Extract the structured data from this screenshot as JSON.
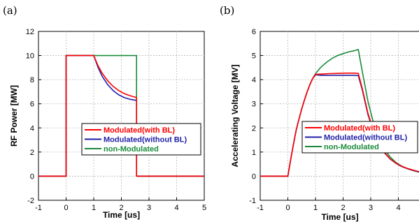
{
  "chart_data": [
    {
      "panel_label": "(a)",
      "type": "line",
      "xlabel": "Time [us]",
      "ylabel": "RF Power [MW]",
      "xlim": [
        -1,
        5
      ],
      "ylim": [
        -2,
        12
      ],
      "xticks": [
        -1,
        0,
        1,
        2,
        3,
        4,
        5
      ],
      "yticks": [
        -2,
        0,
        2,
        4,
        6,
        8,
        10,
        12
      ],
      "grid": true,
      "legend_position": "center-right",
      "series": [
        {
          "name": "Modulated(with BL)",
          "color": "#ff0000",
          "x": [
            -1,
            0,
            0,
            1,
            1.15,
            1.3,
            1.5,
            1.7,
            1.9,
            2.1,
            2.3,
            2.5,
            2.55,
            2.55,
            5
          ],
          "y": [
            0,
            0,
            10,
            10,
            9.18,
            8.55,
            7.92,
            7.45,
            7.1,
            6.85,
            6.68,
            6.55,
            6.52,
            0,
            0
          ]
        },
        {
          "name": "Modulated(without BL)",
          "color": "#1f1fa8",
          "x": [
            -1,
            0,
            0,
            1,
            1.15,
            1.3,
            1.5,
            1.7,
            1.9,
            2.1,
            2.3,
            2.5,
            2.55,
            2.55,
            5
          ],
          "y": [
            0,
            0,
            10,
            10,
            9.05,
            8.3,
            7.6,
            7.1,
            6.75,
            6.52,
            6.38,
            6.3,
            6.28,
            0,
            0
          ]
        },
        {
          "name": "non-Modulated",
          "color": "#1a8a3a",
          "x": [
            -1,
            0,
            0,
            2.55,
            2.55,
            5
          ],
          "y": [
            0,
            0,
            10,
            10,
            0,
            0
          ]
        }
      ]
    },
    {
      "panel_label": "(b)",
      "type": "line",
      "xlabel": "Time [us]",
      "ylabel": "Accelerating Voltage [MV]",
      "xlim": [
        -1,
        5
      ],
      "ylim": [
        -1,
        6
      ],
      "xticks": [
        -1,
        0,
        1,
        2,
        3,
        4
      ],
      "yticks": [
        -1,
        0,
        1,
        2,
        3,
        4,
        5,
        6
      ],
      "grid": true,
      "legend_position": "center-right",
      "series": [
        {
          "name": "Modulated(with BL)",
          "color": "#ff0000",
          "x": [
            -1,
            0,
            0.1,
            0.2,
            0.3,
            0.4,
            0.5,
            0.6,
            0.7,
            0.8,
            0.9,
            1.0,
            1.2,
            1.5,
            1.8,
            2.1,
            2.4,
            2.55,
            2.7,
            2.9,
            3.1,
            3.3,
            3.5,
            3.7,
            3.9,
            4.1,
            4.3,
            4.5,
            4.7,
            4.9,
            5.0
          ],
          "y": [
            0,
            0,
            0.67,
            1.3,
            1.9,
            2.35,
            2.78,
            3.15,
            3.5,
            3.8,
            4.05,
            4.22,
            4.23,
            4.25,
            4.26,
            4.27,
            4.27,
            4.26,
            3.6,
            2.6,
            1.87,
            1.35,
            0.98,
            0.72,
            0.55,
            0.42,
            0.33,
            0.26,
            0.2,
            0.16,
            0.14
          ]
        },
        {
          "name": "Modulated(without BL)",
          "color": "#1f1fa8",
          "x": [
            -1,
            0,
            0.1,
            0.2,
            0.3,
            0.4,
            0.5,
            0.6,
            0.7,
            0.8,
            0.9,
            1.0,
            1.2,
            1.5,
            1.8,
            2.1,
            2.4,
            2.55,
            2.7,
            2.9,
            3.1,
            3.3,
            3.5,
            3.7,
            3.9,
            4.1,
            4.3,
            4.5,
            4.7,
            4.9,
            5.0
          ],
          "y": [
            0,
            0,
            0.67,
            1.3,
            1.9,
            2.35,
            2.78,
            3.15,
            3.5,
            3.8,
            4.05,
            4.2,
            4.18,
            4.18,
            4.18,
            4.18,
            4.18,
            4.17,
            3.55,
            2.55,
            1.83,
            1.32,
            0.96,
            0.71,
            0.54,
            0.41,
            0.32,
            0.25,
            0.19,
            0.15,
            0.13
          ]
        },
        {
          "name": "non-Modulated",
          "color": "#1a8a3a",
          "x": [
            -1,
            0,
            0.1,
            0.2,
            0.3,
            0.4,
            0.5,
            0.6,
            0.7,
            0.8,
            0.9,
            1.0,
            1.2,
            1.4,
            1.6,
            1.8,
            2.0,
            2.2,
            2.4,
            2.55,
            2.7,
            2.9,
            3.1,
            3.3,
            3.5,
            3.7,
            3.9,
            4.1,
            4.3,
            4.5,
            4.7,
            4.9,
            5.0
          ],
          "y": [
            0,
            0,
            0.67,
            1.3,
            1.9,
            2.35,
            2.78,
            3.15,
            3.5,
            3.8,
            4.05,
            4.25,
            4.52,
            4.72,
            4.88,
            5.0,
            5.08,
            5.15,
            5.2,
            5.25,
            4.3,
            3.1,
            2.2,
            1.55,
            1.1,
            0.8,
            0.58,
            0.43,
            0.32,
            0.24,
            0.18,
            0.14,
            0.12
          ]
        }
      ]
    }
  ]
}
